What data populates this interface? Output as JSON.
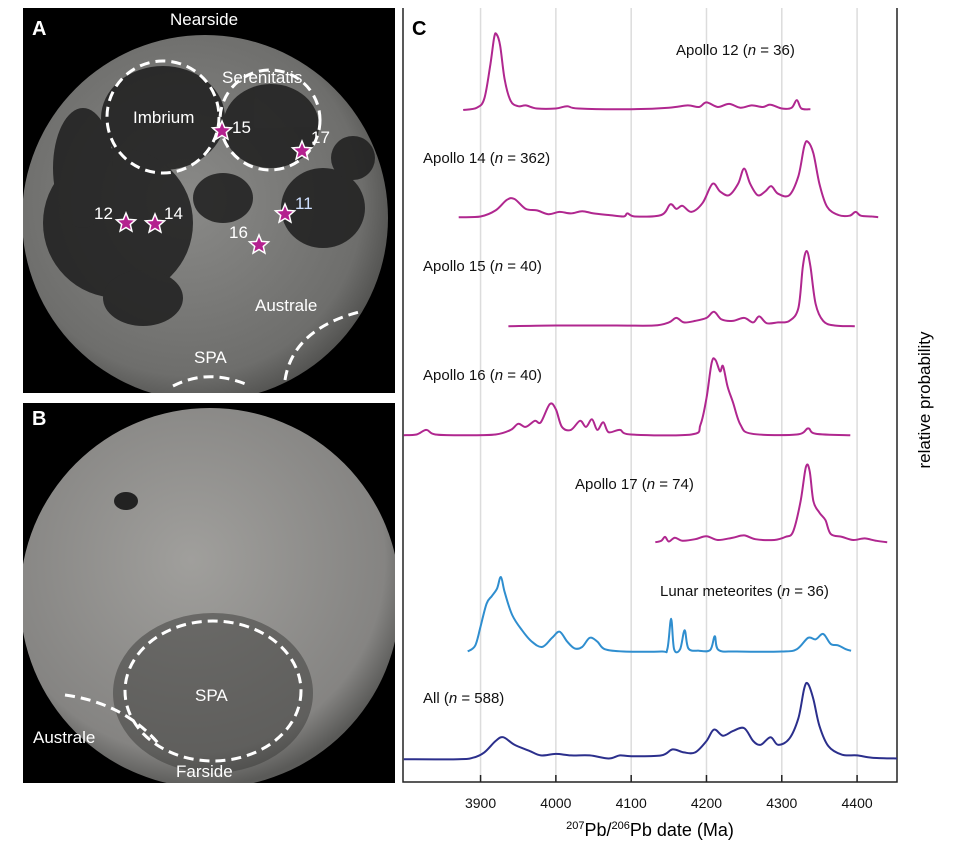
{
  "panels": {
    "a": {
      "letter": "A",
      "top_label": "Nearside",
      "basin_labels": [
        "Imbrium",
        "Serenitatis",
        "Australe",
        "SPA"
      ],
      "sites": [
        "15",
        "17",
        "12",
        "14",
        "11",
        "16"
      ]
    },
    "b": {
      "letter": "B",
      "bottom_label": "Farside",
      "basin_labels": [
        "SPA",
        "Australe"
      ]
    },
    "c": {
      "letter": "C"
    }
  },
  "colors": {
    "apollo": "#B0278F",
    "meteorites": "#2F8ECF",
    "all": "#2B2F8C",
    "star": "#B4218F",
    "grid": "#dcdcdc"
  },
  "chart_data": {
    "type": "line",
    "xlabel_sup1": "207",
    "xlabel_mid": "Pb/",
    "xlabel_sup2": "206",
    "xlabel_end": "Pb date (Ma)",
    "ylabel": "relative probability",
    "xlim": [
      3797,
      4453
    ],
    "xticks": [
      "3900",
      "4000",
      "4100",
      "4200",
      "4300",
      "4400"
    ],
    "grid": "vertical",
    "series": [
      {
        "name": "Apollo 12 (n = 36)",
        "color": "#B0278F",
        "points": [
          [
            3877,
            0
          ],
          [
            3895,
            0.03
          ],
          [
            3905,
            0.15
          ],
          [
            3913,
            0.6
          ],
          [
            3918,
            0.95
          ],
          [
            3921,
            1.0
          ],
          [
            3926,
            0.85
          ],
          [
            3932,
            0.4
          ],
          [
            3940,
            0.12
          ],
          [
            3950,
            0.05
          ],
          [
            3960,
            0.06
          ],
          [
            3975,
            0.02
          ],
          [
            4000,
            0.02
          ],
          [
            4015,
            0.05
          ],
          [
            4030,
            0.02
          ],
          [
            4100,
            0.01
          ],
          [
            4150,
            0.03
          ],
          [
            4175,
            0.06
          ],
          [
            4190,
            0.04
          ],
          [
            4200,
            0.1
          ],
          [
            4215,
            0.04
          ],
          [
            4230,
            0.08
          ],
          [
            4245,
            0.03
          ],
          [
            4260,
            0.06
          ],
          [
            4275,
            0.04
          ],
          [
            4285,
            0.07
          ],
          [
            4300,
            0.02
          ],
          [
            4313,
            0.03
          ],
          [
            4320,
            0.13
          ],
          [
            4326,
            0.02
          ],
          [
            4338,
            0.01
          ]
        ]
      },
      {
        "name": "Apollo 14 (n = 362)",
        "color": "#B0278F",
        "points": [
          [
            3871,
            0.01
          ],
          [
            3900,
            0.02
          ],
          [
            3920,
            0.1
          ],
          [
            3935,
            0.24
          ],
          [
            3945,
            0.25
          ],
          [
            3960,
            0.12
          ],
          [
            3975,
            0.1
          ],
          [
            3990,
            0.05
          ],
          [
            4005,
            0.08
          ],
          [
            4020,
            0.06
          ],
          [
            4035,
            0.09
          ],
          [
            4050,
            0.06
          ],
          [
            4070,
            0.04
          ],
          [
            4090,
            0.02
          ],
          [
            4095,
            0.06
          ],
          [
            4105,
            0.02
          ],
          [
            4140,
            0.04
          ],
          [
            4152,
            0.18
          ],
          [
            4160,
            0.12
          ],
          [
            4168,
            0.16
          ],
          [
            4180,
            0.08
          ],
          [
            4195,
            0.2
          ],
          [
            4208,
            0.45
          ],
          [
            4218,
            0.35
          ],
          [
            4230,
            0.3
          ],
          [
            4242,
            0.45
          ],
          [
            4250,
            0.65
          ],
          [
            4258,
            0.45
          ],
          [
            4268,
            0.3
          ],
          [
            4278,
            0.35
          ],
          [
            4286,
            0.42
          ],
          [
            4295,
            0.32
          ],
          [
            4310,
            0.3
          ],
          [
            4322,
            0.55
          ],
          [
            4330,
            0.95
          ],
          [
            4335,
            1.0
          ],
          [
            4342,
            0.85
          ],
          [
            4350,
            0.45
          ],
          [
            4360,
            0.15
          ],
          [
            4375,
            0.04
          ],
          [
            4390,
            0.03
          ],
          [
            4398,
            0.08
          ],
          [
            4405,
            0.03
          ],
          [
            4420,
            0.02
          ],
          [
            4428,
            0.01
          ]
        ]
      },
      {
        "name": "Apollo 15 (n = 40)",
        "color": "#B0278F",
        "points": [
          [
            3937,
            0.01
          ],
          [
            4000,
            0.02
          ],
          [
            4080,
            0.02
          ],
          [
            4130,
            0.02
          ],
          [
            4150,
            0.06
          ],
          [
            4160,
            0.12
          ],
          [
            4170,
            0.06
          ],
          [
            4185,
            0.08
          ],
          [
            4200,
            0.12
          ],
          [
            4210,
            0.2
          ],
          [
            4220,
            0.1
          ],
          [
            4235,
            0.08
          ],
          [
            4250,
            0.12
          ],
          [
            4262,
            0.06
          ],
          [
            4270,
            0.14
          ],
          [
            4280,
            0.05
          ],
          [
            4295,
            0.06
          ],
          [
            4310,
            0.08
          ],
          [
            4322,
            0.25
          ],
          [
            4328,
            0.8
          ],
          [
            4333,
            1.0
          ],
          [
            4338,
            0.8
          ],
          [
            4345,
            0.3
          ],
          [
            4355,
            0.08
          ],
          [
            4370,
            0.02
          ],
          [
            4397,
            0.01
          ]
        ]
      },
      {
        "name": "Apollo 16 (n = 40)",
        "color": "#B0278F",
        "points": [
          [
            3798,
            0.01
          ],
          [
            3815,
            0.02
          ],
          [
            3828,
            0.08
          ],
          [
            3840,
            0.02
          ],
          [
            3880,
            0.01
          ],
          [
            3920,
            0.02
          ],
          [
            3940,
            0.08
          ],
          [
            3950,
            0.16
          ],
          [
            3960,
            0.12
          ],
          [
            3972,
            0.2
          ],
          [
            3980,
            0.18
          ],
          [
            3992,
            0.42
          ],
          [
            4000,
            0.35
          ],
          [
            4008,
            0.12
          ],
          [
            4020,
            0.08
          ],
          [
            4032,
            0.2
          ],
          [
            4040,
            0.12
          ],
          [
            4048,
            0.22
          ],
          [
            4055,
            0.08
          ],
          [
            4063,
            0.18
          ],
          [
            4070,
            0.05
          ],
          [
            4085,
            0.08
          ],
          [
            4100,
            0.02
          ],
          [
            4180,
            0.02
          ],
          [
            4192,
            0.15
          ],
          [
            4200,
            0.5
          ],
          [
            4207,
            0.97
          ],
          [
            4212,
            1.0
          ],
          [
            4218,
            0.85
          ],
          [
            4222,
            0.92
          ],
          [
            4228,
            0.65
          ],
          [
            4235,
            0.45
          ],
          [
            4245,
            0.15
          ],
          [
            4260,
            0.03
          ],
          [
            4320,
            0.02
          ],
          [
            4335,
            0.1
          ],
          [
            4345,
            0.03
          ],
          [
            4391,
            0.01
          ]
        ]
      },
      {
        "name": "Apollo 17 (n = 74)",
        "color": "#B0278F",
        "points": [
          [
            4132,
            0.01
          ],
          [
            4140,
            0.03
          ],
          [
            4145,
            0.08
          ],
          [
            4150,
            0.02
          ],
          [
            4158,
            0.07
          ],
          [
            4168,
            0.03
          ],
          [
            4185,
            0.05
          ],
          [
            4200,
            0.09
          ],
          [
            4215,
            0.04
          ],
          [
            4235,
            0.07
          ],
          [
            4250,
            0.1
          ],
          [
            4265,
            0.05
          ],
          [
            4290,
            0.04
          ],
          [
            4305,
            0.08
          ],
          [
            4315,
            0.15
          ],
          [
            4325,
            0.55
          ],
          [
            4332,
            1.0
          ],
          [
            4337,
            0.95
          ],
          [
            4342,
            0.55
          ],
          [
            4350,
            0.4
          ],
          [
            4358,
            0.3
          ],
          [
            4365,
            0.12
          ],
          [
            4380,
            0.08
          ],
          [
            4395,
            0.04
          ],
          [
            4410,
            0.06
          ],
          [
            4425,
            0.03
          ],
          [
            4440,
            0.01
          ]
        ]
      },
      {
        "name": "Lunar meteorites (n = 36)",
        "color": "#2F8ECF",
        "points": [
          [
            3883,
            0.02
          ],
          [
            3893,
            0.1
          ],
          [
            3900,
            0.35
          ],
          [
            3908,
            0.65
          ],
          [
            3915,
            0.75
          ],
          [
            3922,
            0.85
          ],
          [
            3927,
            1.0
          ],
          [
            3932,
            0.8
          ],
          [
            3942,
            0.5
          ],
          [
            3955,
            0.3
          ],
          [
            3968,
            0.15
          ],
          [
            3982,
            0.08
          ],
          [
            3995,
            0.2
          ],
          [
            4005,
            0.28
          ],
          [
            4015,
            0.15
          ],
          [
            4025,
            0.06
          ],
          [
            4035,
            0.08
          ],
          [
            4045,
            0.2
          ],
          [
            4055,
            0.15
          ],
          [
            4065,
            0.05
          ],
          [
            4090,
            0.02
          ],
          [
            4140,
            0.02
          ],
          [
            4148,
            0.05
          ],
          [
            4153,
            0.45
          ],
          [
            4157,
            0.05
          ],
          [
            4165,
            0.05
          ],
          [
            4171,
            0.3
          ],
          [
            4176,
            0.06
          ],
          [
            4190,
            0.03
          ],
          [
            4205,
            0.04
          ],
          [
            4211,
            0.22
          ],
          [
            4216,
            0.04
          ],
          [
            4240,
            0.02
          ],
          [
            4300,
            0.02
          ],
          [
            4320,
            0.05
          ],
          [
            4335,
            0.2
          ],
          [
            4345,
            0.18
          ],
          [
            4355,
            0.25
          ],
          [
            4365,
            0.12
          ],
          [
            4375,
            0.1
          ],
          [
            4385,
            0.05
          ],
          [
            4392,
            0.03
          ]
        ]
      },
      {
        "name": "All (n = 588)",
        "color": "#2B2F8C",
        "points": [
          [
            3798,
            0.01
          ],
          [
            3870,
            0.01
          ],
          [
            3890,
            0.03
          ],
          [
            3905,
            0.1
          ],
          [
            3920,
            0.25
          ],
          [
            3930,
            0.3
          ],
          [
            3945,
            0.2
          ],
          [
            3965,
            0.12
          ],
          [
            3980,
            0.06
          ],
          [
            4000,
            0.08
          ],
          [
            4020,
            0.06
          ],
          [
            4045,
            0.06
          ],
          [
            4070,
            0.02
          ],
          [
            4085,
            0.06
          ],
          [
            4100,
            0.05
          ],
          [
            4140,
            0.06
          ],
          [
            4155,
            0.14
          ],
          [
            4170,
            0.1
          ],
          [
            4185,
            0.1
          ],
          [
            4200,
            0.25
          ],
          [
            4210,
            0.4
          ],
          [
            4222,
            0.32
          ],
          [
            4235,
            0.38
          ],
          [
            4250,
            0.42
          ],
          [
            4262,
            0.25
          ],
          [
            4272,
            0.2
          ],
          [
            4285,
            0.3
          ],
          [
            4295,
            0.2
          ],
          [
            4310,
            0.28
          ],
          [
            4322,
            0.55
          ],
          [
            4330,
            0.95
          ],
          [
            4335,
            1.0
          ],
          [
            4342,
            0.8
          ],
          [
            4350,
            0.45
          ],
          [
            4362,
            0.18
          ],
          [
            4380,
            0.07
          ],
          [
            4400,
            0.06
          ],
          [
            4420,
            0.03
          ],
          [
            4453,
            0.02
          ]
        ]
      }
    ]
  }
}
